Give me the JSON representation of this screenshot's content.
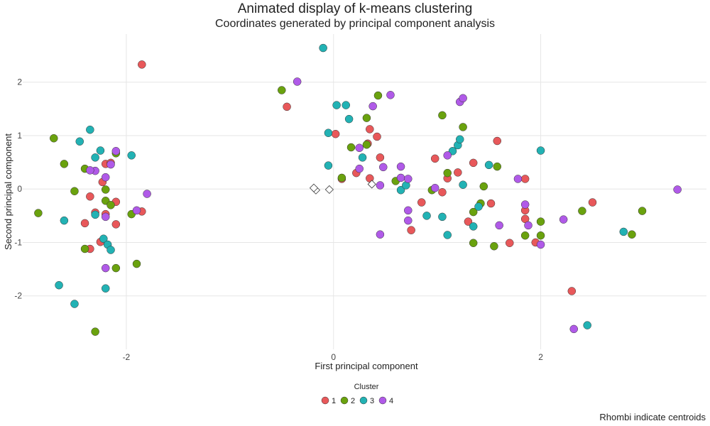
{
  "chart_data": {
    "type": "scatter",
    "title": "Animated display of k-means clustering",
    "subtitle": "Coordinates generated by principal component analysis",
    "xlabel": "First principal component",
    "ylabel": "Second principal component",
    "caption": "Rhombi indicate centroids",
    "xlim": [
      -3.0,
      3.6
    ],
    "ylim": [
      -3.0,
      2.9
    ],
    "x_ticks": [
      -2,
      0,
      2
    ],
    "x_tick_labels": [
      "-2",
      "0",
      "2"
    ],
    "y_ticks": [
      -2,
      -1,
      0,
      1,
      2
    ],
    "y_tick_labels": [
      "-2",
      "-1",
      "0",
      "1",
      "2"
    ],
    "grid": true,
    "legend": {
      "title": "Cluster",
      "placement": "bottom"
    },
    "series": [
      {
        "name": "1",
        "color": "#E8585A",
        "points": [
          [
            -1.85,
            2.33
          ],
          [
            -0.45,
            1.54
          ],
          [
            0.02,
            1.03
          ],
          [
            0.35,
            1.12
          ],
          [
            0.33,
            0.85
          ],
          [
            0.42,
            0.98
          ],
          [
            0.08,
            0.19
          ],
          [
            0.22,
            0.3
          ],
          [
            0.35,
            0.2
          ],
          [
            0.45,
            0.59
          ],
          [
            -2.2,
            0.47
          ],
          [
            -2.15,
            0.49
          ],
          [
            -2.23,
            0.13
          ],
          [
            -2.35,
            -0.14
          ],
          [
            -2.1,
            -0.24
          ],
          [
            -2.2,
            -0.47
          ],
          [
            -2.3,
            -0.44
          ],
          [
            -1.85,
            -0.42
          ],
          [
            -2.4,
            -0.64
          ],
          [
            -2.1,
            -0.66
          ],
          [
            -2.25,
            -0.99
          ],
          [
            -2.35,
            -1.12
          ],
          [
            0.75,
            -0.77
          ],
          [
            0.85,
            -0.25
          ],
          [
            0.98,
            0.57
          ],
          [
            1.05,
            -0.06
          ],
          [
            1.1,
            0.2
          ],
          [
            1.2,
            0.31
          ],
          [
            1.35,
            0.49
          ],
          [
            1.58,
            0.9
          ],
          [
            1.3,
            -0.61
          ],
          [
            1.52,
            -0.27
          ],
          [
            1.7,
            -1.01
          ],
          [
            1.85,
            0.19
          ],
          [
            1.85,
            -0.4
          ],
          [
            1.85,
            -0.56
          ],
          [
            1.95,
            -1.0
          ],
          [
            2.5,
            -0.25
          ],
          [
            2.3,
            -1.91
          ]
        ]
      },
      {
        "name": "2",
        "color": "#6AA20E",
        "points": [
          [
            -2.7,
            0.95
          ],
          [
            -2.6,
            0.47
          ],
          [
            -2.5,
            -0.04
          ],
          [
            -2.4,
            0.38
          ],
          [
            -2.2,
            -0.01
          ],
          [
            -2.2,
            -0.22
          ],
          [
            -2.1,
            0.67
          ],
          [
            -2.15,
            -0.3
          ],
          [
            -1.95,
            -0.47
          ],
          [
            -2.85,
            -0.45
          ],
          [
            -2.4,
            -1.12
          ],
          [
            -2.1,
            -1.48
          ],
          [
            -1.9,
            -1.4
          ],
          [
            -2.3,
            -2.67
          ],
          [
            -0.5,
            1.85
          ],
          [
            0.43,
            1.75
          ],
          [
            0.32,
            1.33
          ],
          [
            0.32,
            0.83
          ],
          [
            0.17,
            0.78
          ],
          [
            0.08,
            0.21
          ],
          [
            0.6,
            0.15
          ],
          [
            0.95,
            -0.02
          ],
          [
            1.05,
            1.38
          ],
          [
            1.1,
            0.3
          ],
          [
            1.25,
            1.16
          ],
          [
            1.35,
            -0.43
          ],
          [
            1.42,
            -0.27
          ],
          [
            1.45,
            0.05
          ],
          [
            1.58,
            0.42
          ],
          [
            1.55,
            -1.07
          ],
          [
            1.35,
            -1.01
          ],
          [
            1.85,
            -0.87
          ],
          [
            2.0,
            -0.61
          ],
          [
            2.0,
            -0.87
          ],
          [
            2.4,
            -0.41
          ],
          [
            2.88,
            -0.85
          ],
          [
            2.98,
            -0.41
          ]
        ]
      },
      {
        "name": "3",
        "color": "#22B2B4",
        "points": [
          [
            -0.1,
            2.64
          ],
          [
            -2.35,
            1.11
          ],
          [
            -2.45,
            0.89
          ],
          [
            -2.25,
            0.72
          ],
          [
            -2.3,
            0.59
          ],
          [
            -1.95,
            0.63
          ],
          [
            -2.6,
            -0.59
          ],
          [
            -2.3,
            -0.48
          ],
          [
            -2.22,
            -0.93
          ],
          [
            -2.18,
            -1.04
          ],
          [
            -2.15,
            -1.14
          ],
          [
            -2.65,
            -1.8
          ],
          [
            -2.5,
            -2.15
          ],
          [
            -2.2,
            -1.86
          ],
          [
            0.03,
            1.57
          ],
          [
            0.12,
            1.57
          ],
          [
            0.15,
            1.31
          ],
          [
            -0.05,
            1.05
          ],
          [
            -0.05,
            0.44
          ],
          [
            0.28,
            0.59
          ],
          [
            0.65,
            -0.02
          ],
          [
            0.7,
            0.07
          ],
          [
            0.9,
            -0.5
          ],
          [
            1.1,
            -0.86
          ],
          [
            1.05,
            -0.52
          ],
          [
            1.15,
            0.71
          ],
          [
            1.2,
            0.82
          ],
          [
            1.22,
            0.93
          ],
          [
            1.25,
            0.08
          ],
          [
            1.35,
            -0.7
          ],
          [
            1.4,
            -0.33
          ],
          [
            1.5,
            0.45
          ],
          [
            2.0,
            0.72
          ],
          [
            2.45,
            -2.55
          ],
          [
            2.8,
            -0.8
          ]
        ]
      },
      {
        "name": "4",
        "color": "#B05AE8",
        "points": [
          [
            -0.35,
            2.01
          ],
          [
            0.38,
            1.55
          ],
          [
            0.55,
            1.76
          ],
          [
            1.22,
            1.63
          ],
          [
            1.25,
            1.7
          ],
          [
            -2.1,
            0.71
          ],
          [
            -2.15,
            0.46
          ],
          [
            -2.3,
            0.34
          ],
          [
            -2.35,
            0.35
          ],
          [
            -2.2,
            0.22
          ],
          [
            -2.2,
            -0.52
          ],
          [
            -1.8,
            -0.09
          ],
          [
            -1.9,
            -0.4
          ],
          [
            -2.2,
            -1.48
          ],
          [
            0.25,
            0.38
          ],
          [
            0.25,
            0.77
          ],
          [
            0.48,
            0.41
          ],
          [
            0.45,
            0.07
          ],
          [
            0.65,
            0.21
          ],
          [
            0.72,
            0.19
          ],
          [
            0.65,
            0.42
          ],
          [
            0.72,
            -0.4
          ],
          [
            0.72,
            -0.59
          ],
          [
            0.45,
            -0.85
          ],
          [
            0.98,
            0.02
          ],
          [
            1.1,
            0.63
          ],
          [
            1.78,
            0.19
          ],
          [
            1.85,
            -0.29
          ],
          [
            1.88,
            -0.68
          ],
          [
            2.0,
            -1.04
          ],
          [
            2.22,
            -0.57
          ],
          [
            2.32,
            -2.62
          ],
          [
            3.32,
            -0.01
          ],
          [
            1.6,
            -0.68
          ]
        ]
      }
    ],
    "centroids": [
      [
        -0.17,
        -0.02
      ],
      [
        -0.19,
        0.02
      ],
      [
        -0.04,
        -0.01
      ],
      [
        0.37,
        0.09
      ]
    ],
    "centroid_color": "#ffffff"
  }
}
